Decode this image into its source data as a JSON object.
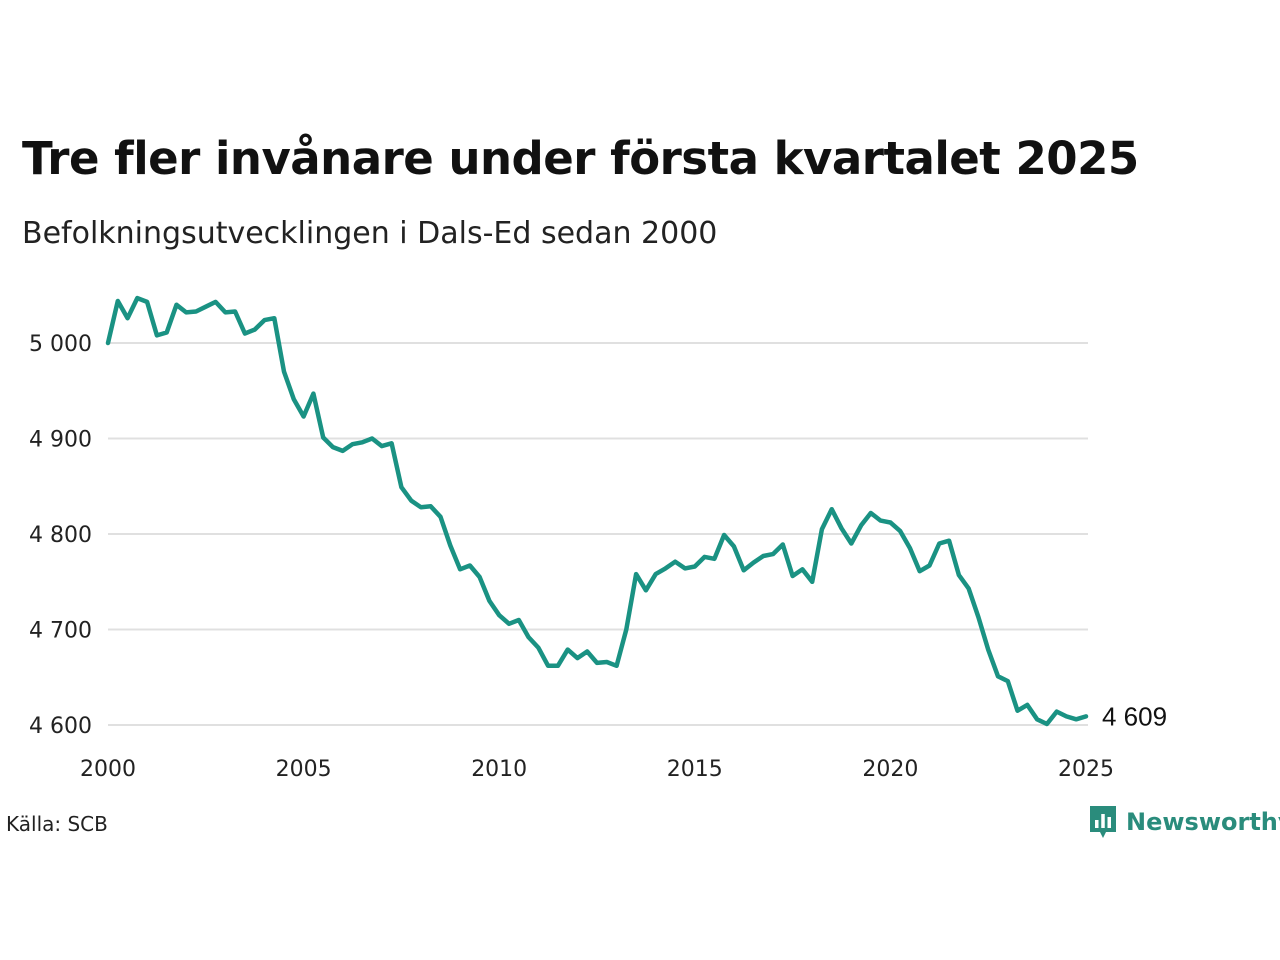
{
  "title": "Tre fler invånare under första kvartalet 2025",
  "subtitle": "Befolkningsutvecklingen i Dals-Ed sedan 2000",
  "source": "Källa: SCB",
  "brand": {
    "name": "Newsworthy",
    "icon": "newsworthy-logo-icon"
  },
  "colors": {
    "line": "#1a9283",
    "grid": "#e0e0e0",
    "text": "#111111",
    "brand": "#2a8c7c"
  },
  "chart_data": {
    "type": "line",
    "xlim": [
      2000,
      2025
    ],
    "ylim": [
      4590,
      5050
    ],
    "x_ticks": [
      2000,
      2005,
      2010,
      2015,
      2020,
      2025
    ],
    "x_tick_labels": [
      "2000",
      "2005",
      "2010",
      "2015",
      "2020",
      "2025"
    ],
    "y_ticks": [
      4600,
      4700,
      4800,
      4900,
      5000
    ],
    "y_tick_labels": [
      "4 600",
      "4 700",
      "4 800",
      "4 900",
      "5 000"
    ],
    "grid": true,
    "end_label": "4 609",
    "x": [
      2000.0,
      2000.25,
      2000.5,
      2000.75,
      2001.0,
      2001.25,
      2001.5,
      2001.75,
      2002.0,
      2002.25,
      2002.5,
      2002.75,
      2003.0,
      2003.25,
      2003.5,
      2003.75,
      2004.0,
      2004.25,
      2004.5,
      2004.75,
      2005.0,
      2005.25,
      2005.5,
      2005.75,
      2006.0,
      2006.25,
      2006.5,
      2006.75,
      2007.0,
      2007.25,
      2007.5,
      2007.75,
      2008.0,
      2008.25,
      2008.5,
      2008.75,
      2009.0,
      2009.25,
      2009.5,
      2009.75,
      2010.0,
      2010.25,
      2010.5,
      2010.75,
      2011.0,
      2011.25,
      2011.5,
      2011.75,
      2012.0,
      2012.25,
      2012.5,
      2012.75,
      2013.0,
      2013.25,
      2013.5,
      2013.75,
      2014.0,
      2014.25,
      2014.5,
      2014.75,
      2015.0,
      2015.25,
      2015.5,
      2015.75,
      2016.0,
      2016.25,
      2016.5,
      2016.75,
      2017.0,
      2017.25,
      2017.5,
      2017.75,
      2018.0,
      2018.25,
      2018.5,
      2018.75,
      2019.0,
      2019.25,
      2019.5,
      2019.75,
      2020.0,
      2020.25,
      2020.5,
      2020.75,
      2021.0,
      2021.25,
      2021.5,
      2021.75,
      2022.0,
      2022.25,
      2022.5,
      2022.75,
      2023.0,
      2023.25,
      2023.5,
      2023.75,
      2024.0,
      2024.25,
      2024.5,
      2024.75,
      2025.0
    ],
    "y": [
      5000,
      5044,
      5026,
      5047,
      5043,
      5008,
      5011,
      5040,
      5032,
      5033,
      5038,
      5043,
      5032,
      5033,
      5010,
      5014,
      5024,
      5026,
      4970,
      4941,
      4923,
      4947,
      4901,
      4891,
      4887,
      4894,
      4896,
      4900,
      4892,
      4895,
      4849,
      4835,
      4828,
      4829,
      4818,
      4788,
      4763,
      4767,
      4755,
      4730,
      4715,
      4706,
      4710,
      4692,
      4681,
      4662,
      4662,
      4679,
      4670,
      4677,
      4665,
      4666,
      4662,
      4700,
      4758,
      4741,
      4758,
      4764,
      4771,
      4764,
      4766,
      4776,
      4774,
      4799,
      4787,
      4762,
      4770,
      4777,
      4779,
      4789,
      4756,
      4763,
      4750,
      4805,
      4826,
      4806,
      4790,
      4809,
      4822,
      4814,
      4812,
      4803,
      4785,
      4761,
      4767,
      4790,
      4793,
      4757,
      4743,
      4713,
      4679,
      4651,
      4646,
      4615,
      4621,
      4606,
      4601,
      4614,
      4609,
      4606,
      4609
    ]
  }
}
